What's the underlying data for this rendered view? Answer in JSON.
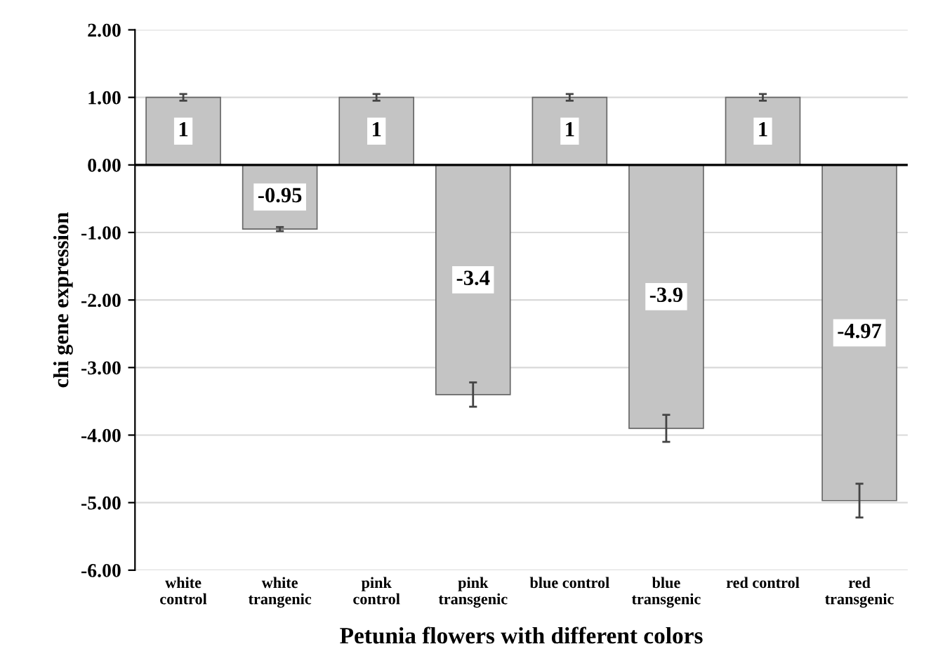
{
  "chart_data": {
    "type": "bar",
    "xlabel": "Petunia flowers with different colors",
    "ylabel": "chi gene expression",
    "categories": [
      "white\ncontrol",
      "white\ntrangenic",
      "pink\ncontrol",
      "pink\ntransgenic",
      "blue control",
      "blue\ntransgenic",
      "red control",
      "red\ntransgenic"
    ],
    "values": [
      1,
      -0.95,
      1,
      -3.4,
      1,
      -3.9,
      1,
      -4.97
    ],
    "errors": [
      0.05,
      0.03,
      0.05,
      0.18,
      0.05,
      0.2,
      0.05,
      0.25
    ],
    "color": "#c4c4c4",
    "ylim": [
      -6,
      2
    ],
    "yticks": [
      {
        "value": -6,
        "label": "-6.00"
      },
      {
        "value": -5,
        "label": "-5.00"
      },
      {
        "value": -4,
        "label": "-4.00"
      },
      {
        "value": -3,
        "label": "-3.00"
      },
      {
        "value": -2,
        "label": "-2.00"
      },
      {
        "value": -1,
        "label": "-1.00"
      },
      {
        "value": 0,
        "label": "0.00"
      },
      {
        "value": 1,
        "label": "1.00"
      },
      {
        "value": 2,
        "label": "2.00"
      }
    ],
    "grid": "y",
    "data_labels": true
  }
}
